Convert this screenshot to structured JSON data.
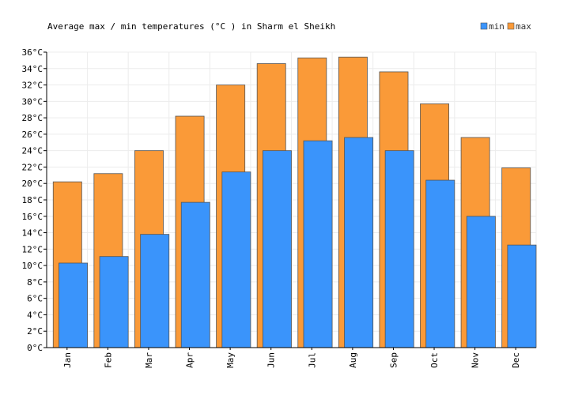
{
  "chart_data": {
    "type": "bar",
    "title": "Average max / min temperatures (°C ) in Sharm el Sheikh",
    "xlabel": "",
    "ylabel": "",
    "categories": [
      "Jan",
      "Feb",
      "Mar",
      "Apr",
      "May",
      "Jun",
      "Jul",
      "Aug",
      "Sep",
      "Oct",
      "Nov",
      "Dec"
    ],
    "series": [
      {
        "name": "min",
        "color": "#3a94fb",
        "values": [
          10.3,
          11.1,
          13.8,
          17.7,
          21.4,
          24.0,
          25.2,
          25.6,
          24.0,
          20.4,
          16.0,
          12.5
        ]
      },
      {
        "name": "max",
        "color": "#fa9a38",
        "values": [
          20.2,
          21.2,
          24.0,
          28.2,
          32.0,
          34.6,
          35.3,
          35.4,
          33.6,
          29.7,
          25.6,
          21.9
        ]
      }
    ],
    "ylim": [
      0,
      36
    ],
    "ytick_step": 2,
    "ytick_suffix": "°C",
    "grid": true,
    "legend_position": "top-right",
    "gridline_color": "#ececec",
    "axis_color": "#000000",
    "bar_edge_color": "#555555"
  }
}
